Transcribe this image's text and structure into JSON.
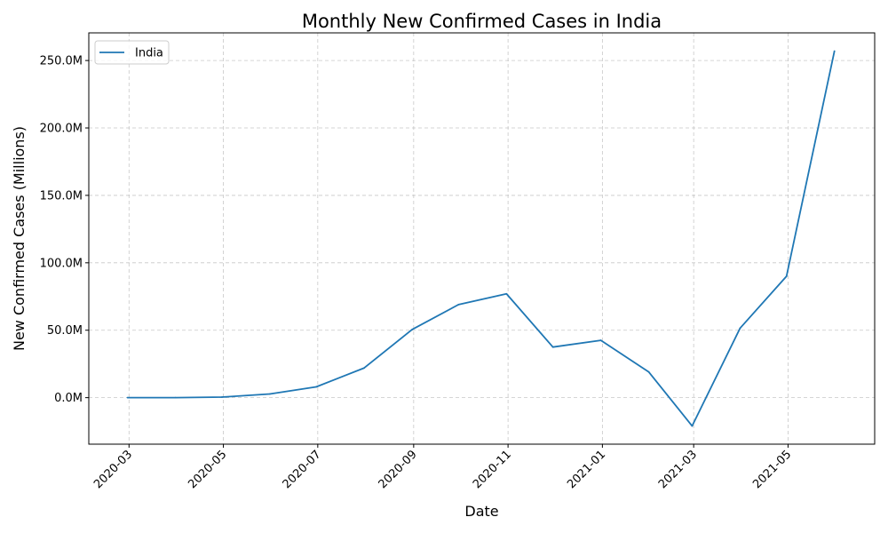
{
  "chart_data": {
    "type": "line",
    "title": "Monthly New Confirmed Cases in India",
    "xlabel": "Date",
    "ylabel": "New Confirmed Cases (Millions)",
    "x": [
      "2020-02-29",
      "2020-03-31",
      "2020-04-30",
      "2020-05-31",
      "2020-06-30",
      "2020-07-31",
      "2020-08-31",
      "2020-09-30",
      "2020-10-31",
      "2020-11-30",
      "2020-12-31",
      "2021-01-31",
      "2021-02-28",
      "2021-03-31",
      "2021-04-30",
      "2021-05-31"
    ],
    "series": [
      {
        "name": "India",
        "color": "#1f77b4",
        "values": [
          0.0,
          0.0,
          0.4,
          2.7,
          8.0,
          22.0,
          50.5,
          69.0,
          77.0,
          37.5,
          42.5,
          19.0,
          -21.0,
          51.5,
          90.0,
          257.0
        ]
      }
    ],
    "xticks": [
      "2020-03",
      "2020-05",
      "2020-07",
      "2020-09",
      "2020-11",
      "2021-01",
      "2021-03",
      "2021-05"
    ],
    "yticks": [
      0,
      50,
      100,
      150,
      200,
      250
    ],
    "ytick_labels": [
      "0.0M",
      "50.0M",
      "100.0M",
      "150.0M",
      "200.0M",
      "250.0M"
    ],
    "xlim": [
      "2020-02-04",
      "2021-06-26"
    ],
    "ylim": [
      -34.5,
      270.5
    ],
    "grid": true,
    "grid_style": "dashed",
    "legend_position": "top-left"
  }
}
